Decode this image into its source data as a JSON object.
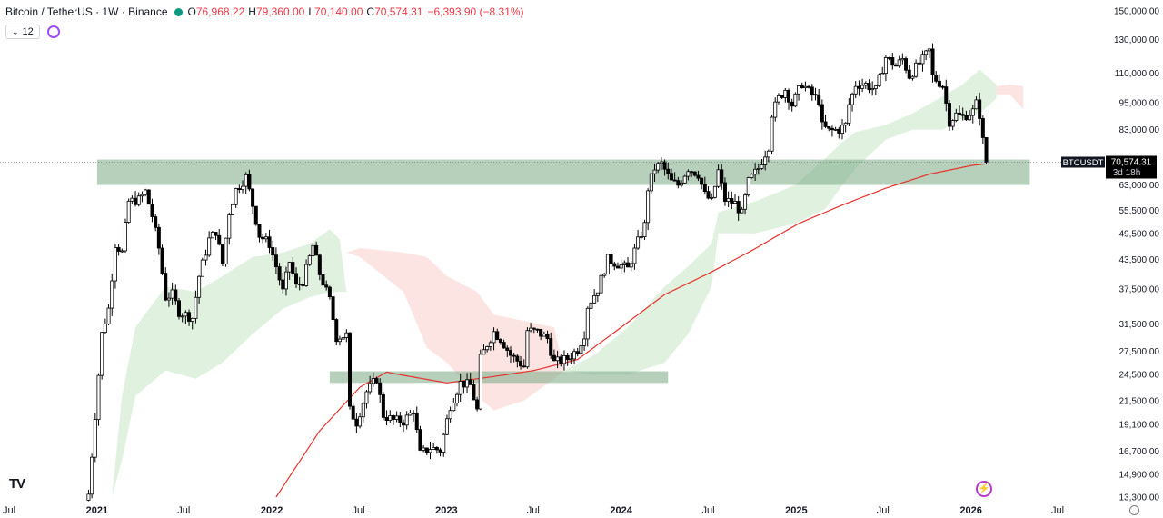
{
  "header": {
    "symbol": "Bitcoin / TetherUS · 1W · Binance",
    "open_label": "O",
    "open": "76,968.22",
    "high_label": "H",
    "high": "79,360.00",
    "low_label": "L",
    "low": "70,140.00",
    "close_label": "C",
    "close": "70,574.31",
    "change": "−6,393.90 (−8.31%)"
  },
  "indicators": {
    "collapse_label": "12"
  },
  "price_tag": {
    "ticker": "BTCUSDT",
    "price": "70,574.31",
    "countdown": "3d 18h"
  },
  "colors": {
    "up": "#ffffff",
    "down": "#000000",
    "wick": "#000000",
    "ma": "#e5322d",
    "zone": "#7aaa85",
    "cloud_bull": "#d5ecd5",
    "cloud_bear": "#fadbd8",
    "axis_text": "#131722"
  },
  "chart_data": {
    "type": "candlestick",
    "symbol": "BTCUSDT",
    "timeframe": "1W",
    "y_scale": "log",
    "ylim": [
      13300,
      150000
    ],
    "xlim": [
      "2020-07-01",
      "2026-07-01"
    ],
    "y_ticks": [
      "150,000.00",
      "130,000.00",
      "110,000.00",
      "95,000.00",
      "83,000.00",
      "63,000.00",
      "55,500.00",
      "49,500.00",
      "43,500.00",
      "37,500.00",
      "31,500.00",
      "27,500.00",
      "24,500.00",
      "21,500.00",
      "19,100.00",
      "16,700.00",
      "14,900.00",
      "13,300.00"
    ],
    "x_ticks": [
      {
        "label": "Jul",
        "date": "2020-07-01"
      },
      {
        "label": "2021",
        "date": "2021-01-01"
      },
      {
        "label": "Jul",
        "date": "2021-07-01"
      },
      {
        "label": "2022",
        "date": "2022-01-01"
      },
      {
        "label": "Jul",
        "date": "2022-07-01"
      },
      {
        "label": "2023",
        "date": "2023-01-01"
      },
      {
        "label": "Jul",
        "date": "2023-07-01"
      },
      {
        "label": "2024",
        "date": "2024-01-01"
      },
      {
        "label": "Jul",
        "date": "2024-07-01"
      },
      {
        "label": "2025",
        "date": "2025-01-01"
      },
      {
        "label": "Jul",
        "date": "2025-07-01"
      },
      {
        "label": "2026",
        "date": "2026-01-01"
      },
      {
        "label": "Jul",
        "date": "2026-07-01"
      }
    ],
    "last_price": 70574.31,
    "weekly_close_path": [
      [
        "2020-12-14",
        13500
      ],
      [
        "2020-12-28",
        20000
      ],
      [
        "2021-01-11",
        30000
      ],
      [
        "2021-01-25",
        34000
      ],
      [
        "2021-02-08",
        47000
      ],
      [
        "2021-02-22",
        45000
      ],
      [
        "2021-03-08",
        58000
      ],
      [
        "2021-03-29",
        58500
      ],
      [
        "2021-04-12",
        61000
      ],
      [
        "2021-04-26",
        54000
      ],
      [
        "2021-05-10",
        46000
      ],
      [
        "2021-05-24",
        36000
      ],
      [
        "2021-06-07",
        36500
      ],
      [
        "2021-06-21",
        33500
      ],
      [
        "2021-07-05",
        33000
      ],
      [
        "2021-07-19",
        32500
      ],
      [
        "2021-08-02",
        40000
      ],
      [
        "2021-08-23",
        48000
      ],
      [
        "2021-09-06",
        50000
      ],
      [
        "2021-09-20",
        42500
      ],
      [
        "2021-10-04",
        55000
      ],
      [
        "2021-10-18",
        61500
      ],
      [
        "2021-11-08",
        65500
      ],
      [
        "2021-11-22",
        57000
      ],
      [
        "2021-12-06",
        49000
      ],
      [
        "2021-12-27",
        47000
      ],
      [
        "2022-01-10",
        42000
      ],
      [
        "2022-01-24",
        37000
      ],
      [
        "2022-02-07",
        43000
      ],
      [
        "2022-02-21",
        38000
      ],
      [
        "2022-03-07",
        39000
      ],
      [
        "2022-03-28",
        46500
      ],
      [
        "2022-04-11",
        40500
      ],
      [
        "2022-05-02",
        35500
      ],
      [
        "2022-05-16",
        29500
      ],
      [
        "2022-06-06",
        29800
      ],
      [
        "2022-06-13",
        20500
      ],
      [
        "2022-06-27",
        19300
      ],
      [
        "2022-07-18",
        22500
      ],
      [
        "2022-08-08",
        24000
      ],
      [
        "2022-08-22",
        20000
      ],
      [
        "2022-09-12",
        19500
      ],
      [
        "2022-10-03",
        19400
      ],
      [
        "2022-10-24",
        20500
      ],
      [
        "2022-11-07",
        16500
      ],
      [
        "2022-11-28",
        17000
      ],
      [
        "2022-12-19",
        16800
      ],
      [
        "2023-01-09",
        21000
      ],
      [
        "2023-01-30",
        23500
      ],
      [
        "2023-02-20",
        23200
      ],
      [
        "2023-03-06",
        20500
      ],
      [
        "2023-03-13",
        26500
      ],
      [
        "2023-03-27",
        28500
      ],
      [
        "2023-04-10",
        30300
      ],
      [
        "2023-04-24",
        29300
      ],
      [
        "2023-05-15",
        27000
      ],
      [
        "2023-06-12",
        25500
      ],
      [
        "2023-06-19",
        30500
      ],
      [
        "2023-07-10",
        30300
      ],
      [
        "2023-07-31",
        29300
      ],
      [
        "2023-08-14",
        26000
      ],
      [
        "2023-09-11",
        26500
      ],
      [
        "2023-10-02",
        27800
      ],
      [
        "2023-10-16",
        30000
      ],
      [
        "2023-10-23",
        34500
      ],
      [
        "2023-11-13",
        37500
      ],
      [
        "2023-12-04",
        43500
      ],
      [
        "2023-12-25",
        42500
      ],
      [
        "2024-01-15",
        41500
      ],
      [
        "2024-02-05",
        47500
      ],
      [
        "2024-02-19",
        51500
      ],
      [
        "2024-02-26",
        62000
      ],
      [
        "2024-03-11",
        68500
      ],
      [
        "2024-03-25",
        70000
      ],
      [
        "2024-04-15",
        64000
      ],
      [
        "2024-04-29",
        63000
      ],
      [
        "2024-05-20",
        68500
      ],
      [
        "2024-06-10",
        66500
      ],
      [
        "2024-06-24",
        60000
      ],
      [
        "2024-07-08",
        58000
      ],
      [
        "2024-07-22",
        67500
      ],
      [
        "2024-08-05",
        58500
      ],
      [
        "2024-08-26",
        57500
      ],
      [
        "2024-09-09",
        54500
      ],
      [
        "2024-09-23",
        64000
      ],
      [
        "2024-10-14",
        68500
      ],
      [
        "2024-11-04",
        76500
      ],
      [
        "2024-11-11",
        90000
      ],
      [
        "2024-11-25",
        97000
      ],
      [
        "2024-12-09",
        101500
      ],
      [
        "2024-12-23",
        94000
      ],
      [
        "2025-01-13",
        104500
      ],
      [
        "2025-01-27",
        100500
      ],
      [
        "2025-02-17",
        96000
      ],
      [
        "2025-02-24",
        84500
      ],
      [
        "2025-03-10",
        82500
      ],
      [
        "2025-03-31",
        83000
      ],
      [
        "2025-04-14",
        85000
      ],
      [
        "2025-04-21",
        94000
      ],
      [
        "2025-05-05",
        104000
      ],
      [
        "2025-05-26",
        104000
      ],
      [
        "2025-06-16",
        101000
      ],
      [
        "2025-07-07",
        119000
      ],
      [
        "2025-07-28",
        114000
      ],
      [
        "2025-08-11",
        118000
      ],
      [
        "2025-08-25",
        108500
      ],
      [
        "2025-09-15",
        115500
      ],
      [
        "2025-10-06",
        123000
      ],
      [
        "2025-10-13",
        108000
      ],
      [
        "2025-11-03",
        103500
      ],
      [
        "2025-11-17",
        86500
      ],
      [
        "2025-12-01",
        89500
      ],
      [
        "2025-12-15",
        88500
      ],
      [
        "2026-01-05",
        91000
      ],
      [
        "2026-01-12",
        94500
      ],
      [
        "2026-01-19",
        89500
      ],
      [
        "2026-01-26",
        78500
      ],
      [
        "2026-02-02",
        70574.31
      ]
    ],
    "ma_path": [
      [
        "2022-01-10",
        13300
      ],
      [
        "2022-04-11",
        18500
      ],
      [
        "2022-07-04",
        23000
      ],
      [
        "2022-08-29",
        24800
      ],
      [
        "2022-10-03",
        24400
      ],
      [
        "2023-01-02",
        23500
      ],
      [
        "2023-04-03",
        24200
      ],
      [
        "2023-07-03",
        25000
      ],
      [
        "2023-10-02",
        26400
      ],
      [
        "2024-01-01",
        31000
      ],
      [
        "2024-04-01",
        36500
      ],
      [
        "2024-07-01",
        40500
      ],
      [
        "2024-10-01",
        45500
      ],
      [
        "2025-01-06",
        52000
      ],
      [
        "2025-04-07",
        57000
      ],
      [
        "2025-07-07",
        62000
      ],
      [
        "2025-10-06",
        66500
      ],
      [
        "2026-01-05",
        69500
      ],
      [
        "2026-02-02",
        70000
      ]
    ],
    "zones": [
      {
        "start": "2021-01-01",
        "end": "2026-05-04",
        "low": 63000,
        "high": 71500
      },
      {
        "start": "2022-05-02",
        "end": "2024-04-08",
        "low": 23500,
        "high": 24900
      }
    ],
    "cloud_bull": [
      [
        "2021-02-01",
        13300,
        13300
      ],
      [
        "2021-02-22",
        16000,
        22000
      ],
      [
        "2021-03-22",
        22000,
        31000
      ],
      [
        "2021-05-24",
        25000,
        38000
      ],
      [
        "2021-07-26",
        24000,
        37000
      ],
      [
        "2021-09-20",
        26000,
        40000
      ],
      [
        "2021-11-22",
        30000,
        44000
      ],
      [
        "2022-01-24",
        34000,
        45000
      ],
      [
        "2022-03-21",
        36000,
        47000
      ],
      [
        "2022-05-02",
        37000,
        50500
      ],
      [
        "2022-05-23",
        37000,
        48000
      ],
      [
        "2022-06-06",
        37000,
        37000
      ]
    ],
    "cloud_bear": [
      [
        "2022-06-06",
        45000,
        45000
      ],
      [
        "2022-07-04",
        44000,
        46000
      ],
      [
        "2022-10-03",
        37000,
        45000
      ],
      [
        "2022-11-21",
        28000,
        44000
      ],
      [
        "2023-01-02",
        26000,
        40000
      ],
      [
        "2023-03-06",
        22000,
        37000
      ],
      [
        "2023-04-10",
        20500,
        33000
      ],
      [
        "2023-06-12",
        21500,
        32000
      ],
      [
        "2023-08-14",
        24000,
        31000
      ],
      [
        "2023-09-04",
        25000,
        25000
      ]
    ],
    "cloud_bull_2": [
      [
        "2023-09-04",
        25000,
        25000
      ],
      [
        "2023-11-06",
        24500,
        27000
      ],
      [
        "2024-01-15",
        24500,
        31000
      ],
      [
        "2024-04-01",
        26000,
        38000
      ],
      [
        "2024-05-20",
        30000,
        42000
      ],
      [
        "2024-07-08",
        38000,
        47000
      ],
      [
        "2024-07-22",
        49500,
        55000
      ],
      [
        "2024-10-07",
        49500,
        58000
      ],
      [
        "2024-12-30",
        52000,
        63000
      ],
      [
        "2025-03-03",
        56000,
        72000
      ],
      [
        "2025-04-07",
        63000,
        78000
      ],
      [
        "2025-05-05",
        68500,
        82000
      ],
      [
        "2025-07-07",
        79000,
        85000
      ],
      [
        "2025-09-01",
        83000,
        90000
      ],
      [
        "2025-11-03",
        83000,
        98000
      ],
      [
        "2025-12-15",
        88000,
        104000
      ],
      [
        "2026-01-19",
        90000,
        112000
      ],
      [
        "2026-02-23",
        97000,
        104000
      ]
    ],
    "cloud_bear_2": [
      [
        "2026-02-23",
        99000,
        103000
      ],
      [
        "2026-03-23",
        99000,
        104000
      ],
      [
        "2026-04-20",
        92000,
        103000
      ]
    ]
  }
}
